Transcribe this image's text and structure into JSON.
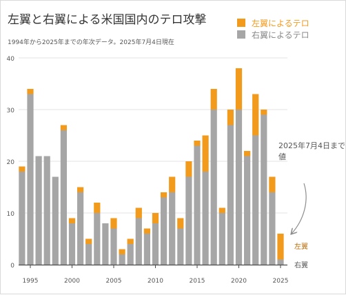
{
  "title": "左翼と右翼による米国国内のテロ攻撃",
  "subtitle": "1994年から2025年までの年次データ。2025年7月4日現在",
  "annotation": "2025年7月4日までの値",
  "colors": {
    "right": "#a6a6a6",
    "left": "#f29a1c",
    "grid": "#e3e3e3",
    "text": "#555555",
    "title": "#333333",
    "axis": "#4a4a4a",
    "arrow": "#8c8c8c"
  },
  "chart_data": {
    "type": "bar",
    "stacked": true,
    "title": "左翼と右翼による米国国内のテロ攻撃",
    "subtitle": "1994年から2025年までの年次データ。2025年7月4日現在",
    "legend_position": "top-right",
    "grid": true,
    "ylim": [
      0,
      40
    ],
    "yticks": [
      0,
      10,
      20,
      30,
      40
    ],
    "xticks": [
      1995,
      2000,
      2005,
      2010,
      2015,
      2020,
      2025
    ],
    "categories": [
      1994,
      1995,
      1996,
      1997,
      1998,
      1999,
      2000,
      2001,
      2002,
      2003,
      2004,
      2005,
      2006,
      2007,
      2008,
      2009,
      2010,
      2011,
      2012,
      2013,
      2014,
      2015,
      2016,
      2017,
      2018,
      2019,
      2020,
      2021,
      2022,
      2023,
      2024,
      2025
    ],
    "series": [
      {
        "name": "右翼によるテロ",
        "key": "right",
        "values": [
          18,
          33,
          21,
          21,
          17,
          26,
          8,
          14,
          4,
          10,
          8,
          7,
          2,
          4,
          9,
          6,
          8,
          13,
          14,
          7,
          17,
          23,
          18,
          30,
          10,
          27,
          30,
          21,
          25,
          29,
          14,
          1
        ]
      },
      {
        "name": "左翼によるテロ",
        "key": "left",
        "values": [
          1,
          1,
          0,
          0,
          0,
          1,
          1,
          1,
          1,
          2,
          0,
          2,
          1,
          1,
          2,
          1,
          2,
          1,
          3,
          2,
          3,
          1,
          7,
          4,
          1,
          3,
          8,
          1,
          8,
          1,
          3,
          5
        ]
      }
    ],
    "end_labels": {
      "left": "左翼",
      "right": "右翼"
    }
  }
}
